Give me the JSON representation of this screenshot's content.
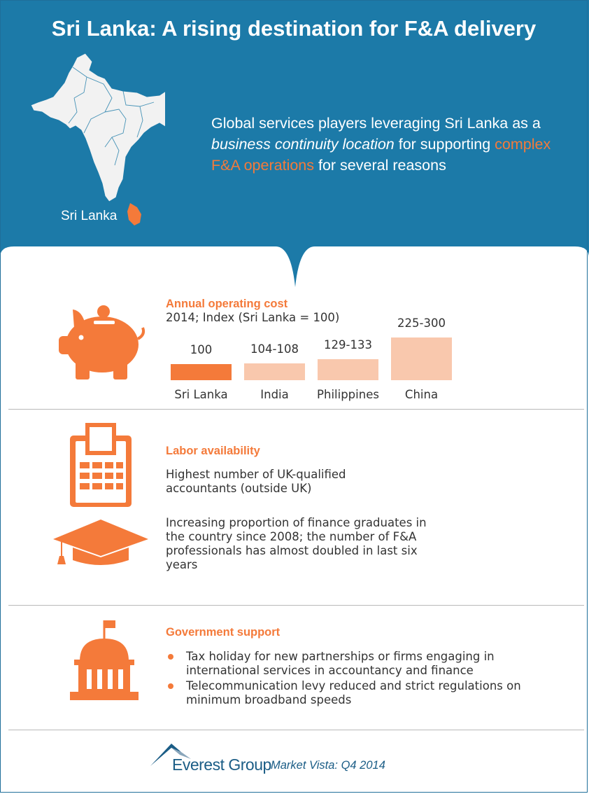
{
  "header": {
    "title": "Sri Lanka: A rising destination for F&A delivery",
    "map_label": "Sri Lanka",
    "intro": {
      "part1": "Global services players leveraging Sri Lanka as a ",
      "italic": "business continuity location",
      "part2": " for supporting ",
      "highlight": "complex F&A operations",
      "part3": " for several reasons"
    }
  },
  "cost": {
    "title": "Annual operating cost",
    "subtitle": "2014; Index (Sri Lanka = 100)",
    "chart_data": {
      "type": "bar",
      "categories": [
        "Sri Lanka",
        "India",
        "Philippines",
        "China"
      ],
      "values": [
        100,
        106,
        131,
        262.5
      ],
      "value_labels": [
        "100",
        "104-108",
        "129-133",
        "225-300"
      ],
      "ylim": [
        0,
        300
      ],
      "highlight_color": "#f47a3a",
      "other_color": "#f9c8ad"
    }
  },
  "labor": {
    "title": "Labor availability",
    "point1": "Highest number of UK-qualified accountants (outside UK)",
    "point2": "Increasing proportion of finance graduates in the country since 2008; the number of F&A professionals has almost doubled in last six years"
  },
  "government": {
    "title": "Government support",
    "bullets": [
      "Tax holiday for new partnerships or firms engaging in international services in accountancy and finance",
      "Telecommunication levy reduced and strict regulations on minimum broadband speeds"
    ]
  },
  "footer": {
    "logo_text": "Everest Group",
    "source": "Market Vista: Q4 2014"
  },
  "colors": {
    "header_blue": "#1c7aa8",
    "accent_orange": "#f47a3a",
    "map_gray": "#f2f2f2"
  },
  "icons": [
    "piggy-bank-icon",
    "calculator-icon",
    "graduation-cap-icon",
    "government-building-icon",
    "everest-logo-icon"
  ]
}
